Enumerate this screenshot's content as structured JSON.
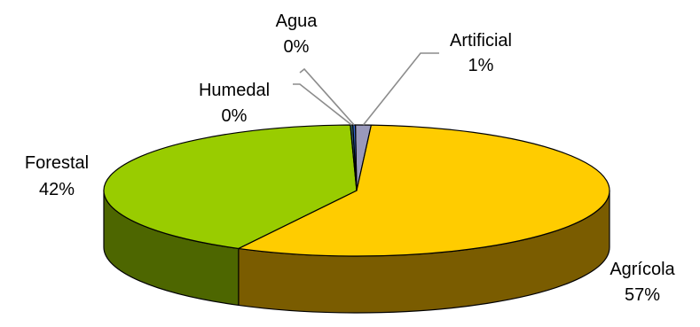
{
  "chart_data": {
    "type": "pie",
    "style": "3d",
    "title": "",
    "slices": [
      {
        "name": "Artificial",
        "value": 1,
        "label": "1%",
        "color": "#9999bb",
        "side_color": "#5a5a70"
      },
      {
        "name": "Agrícola",
        "value": 57,
        "label": "57%",
        "color": "#ffcc00",
        "side_color": "#7a5c00"
      },
      {
        "name": "Forestal",
        "value": 42,
        "label": "42%",
        "color": "#99cc00",
        "side_color": "#4d6600"
      },
      {
        "name": "Humedal",
        "value": 0,
        "label": "0%",
        "color": "#336666",
        "side_color": "#1a3333"
      },
      {
        "name": "Agua",
        "value": 0,
        "label": "0%",
        "color": "#3366cc",
        "side_color": "#1a3366"
      }
    ],
    "grid": false,
    "legend": "none"
  }
}
